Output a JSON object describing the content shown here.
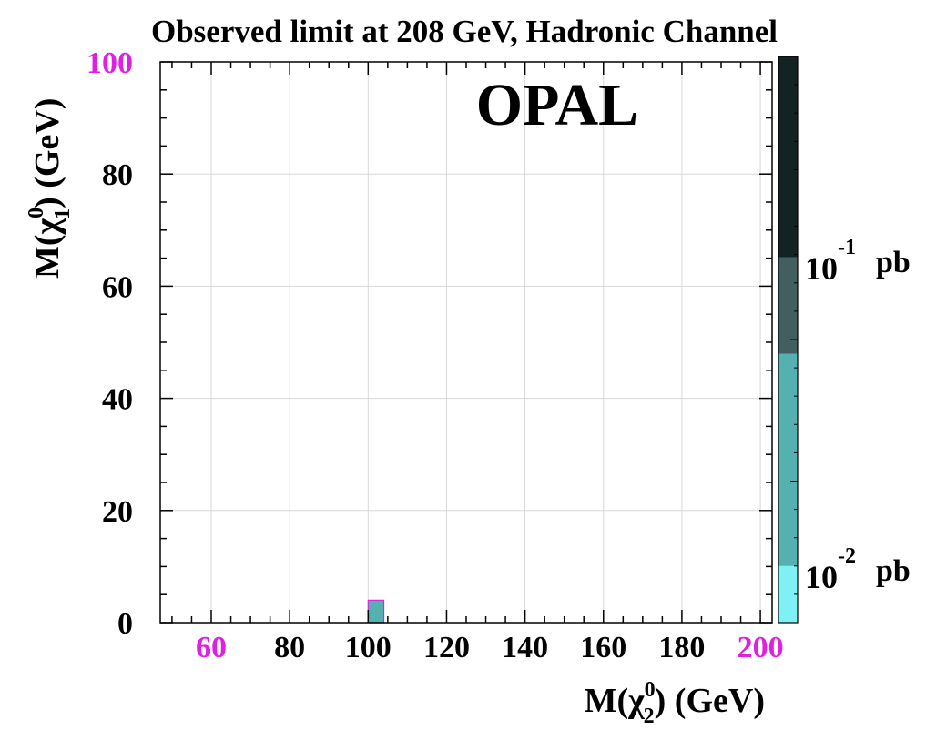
{
  "chart_data": {
    "type": "heatmap",
    "title": "Observed limit at 208 GeV, Hadronic Channel",
    "watermark": "OPAL",
    "xlabel": {
      "main": "M(χ",
      "sup": "0",
      "sub": "2",
      "tail": ") (GeV)"
    },
    "ylabel": {
      "main": "M(χ",
      "sup": "0",
      "sub": "1",
      "tail": ") (GeV)"
    },
    "xlim": [
      47,
      203
    ],
    "ylim": [
      0,
      100
    ],
    "xticks": [
      {
        "value": 60,
        "label": "60",
        "highlight": true
      },
      {
        "value": 80,
        "label": "80",
        "highlight": false
      },
      {
        "value": 100,
        "label": "100",
        "highlight": false
      },
      {
        "value": 120,
        "label": "120",
        "highlight": false
      },
      {
        "value": 140,
        "label": "140",
        "highlight": false
      },
      {
        "value": 160,
        "label": "160",
        "highlight": false
      },
      {
        "value": 180,
        "label": "180",
        "highlight": false
      },
      {
        "value": 200,
        "label": "200",
        "highlight": true
      }
    ],
    "yticks": [
      {
        "value": 0,
        "label": "0",
        "highlight": false
      },
      {
        "value": 20,
        "label": "20",
        "highlight": false
      },
      {
        "value": 40,
        "label": "40",
        "highlight": false
      },
      {
        "value": 60,
        "label": "60",
        "highlight": false
      },
      {
        "value": 80,
        "label": "80",
        "highlight": false
      },
      {
        "value": 100,
        "label": "100",
        "highlight": true
      }
    ],
    "grid": true,
    "colors": {
      "level_0": "#7ff0f4",
      "level_1": "#55b0b0",
      "level_2": "#425e5e",
      "level_3": "#132323",
      "edge": "#e020e0",
      "highlight_text": "#e020e0",
      "grid": "#d8d8d8"
    },
    "colorbar": {
      "levels": [
        {
          "level": 0,
          "from": 0.0,
          "to": 0.1
        },
        {
          "level": 1,
          "from": 0.1,
          "to": 0.475
        },
        {
          "level": 2,
          "from": 0.475,
          "to": 0.645
        },
        {
          "level": 3,
          "from": 0.645,
          "to": 1.0
        }
      ],
      "labels": [
        {
          "base": "10",
          "exp": "-2",
          "unit": "pb",
          "at": 0.1
        },
        {
          "base": "10",
          "exp": "-1",
          "unit": "pb",
          "at": 0.645
        }
      ]
    },
    "cells": [
      {
        "x": 100,
        "y": 0,
        "v": 1
      }
    ]
  }
}
